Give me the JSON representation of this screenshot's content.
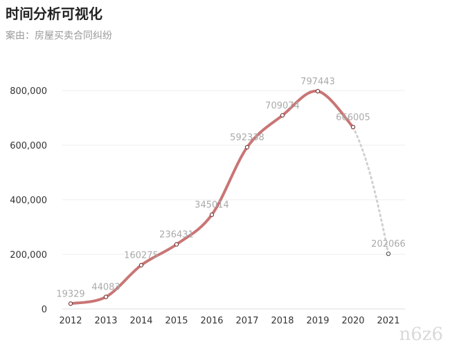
{
  "header": {
    "title": "时间分析可视化",
    "subtitle": "案由：房屋买卖合同纠纷"
  },
  "watermark": "n6z6",
  "colors": {
    "line": "#c97575",
    "projection": "#d0d0d0",
    "grid": "#eeeeee",
    "axis": "#dddddd"
  },
  "chart_data": {
    "type": "line",
    "title": "时间分析可视化",
    "subtitle": "案由：房屋买卖合同纠纷",
    "x": [
      "2012",
      "2013",
      "2014",
      "2015",
      "2016",
      "2017",
      "2018",
      "2019",
      "2020",
      "2021"
    ],
    "series": [
      {
        "values": [
          19329,
          44083,
          160275,
          236431,
          345014,
          592338,
          709074,
          797443,
          666005,
          202066
        ],
        "value_labels": [
          "19329",
          "44083",
          "160275",
          "236431",
          "345014",
          "592338",
          "709074",
          "797443",
          "666005",
          "202066"
        ],
        "solid_through": "2020",
        "dashed_segment": [
          "2020",
          "2021"
        ]
      }
    ],
    "yticks": [
      "0",
      "200,000",
      "400,000",
      "600,000",
      "800,000"
    ],
    "ylim": [
      0,
      800000
    ],
    "grid": true,
    "legend": "none"
  }
}
